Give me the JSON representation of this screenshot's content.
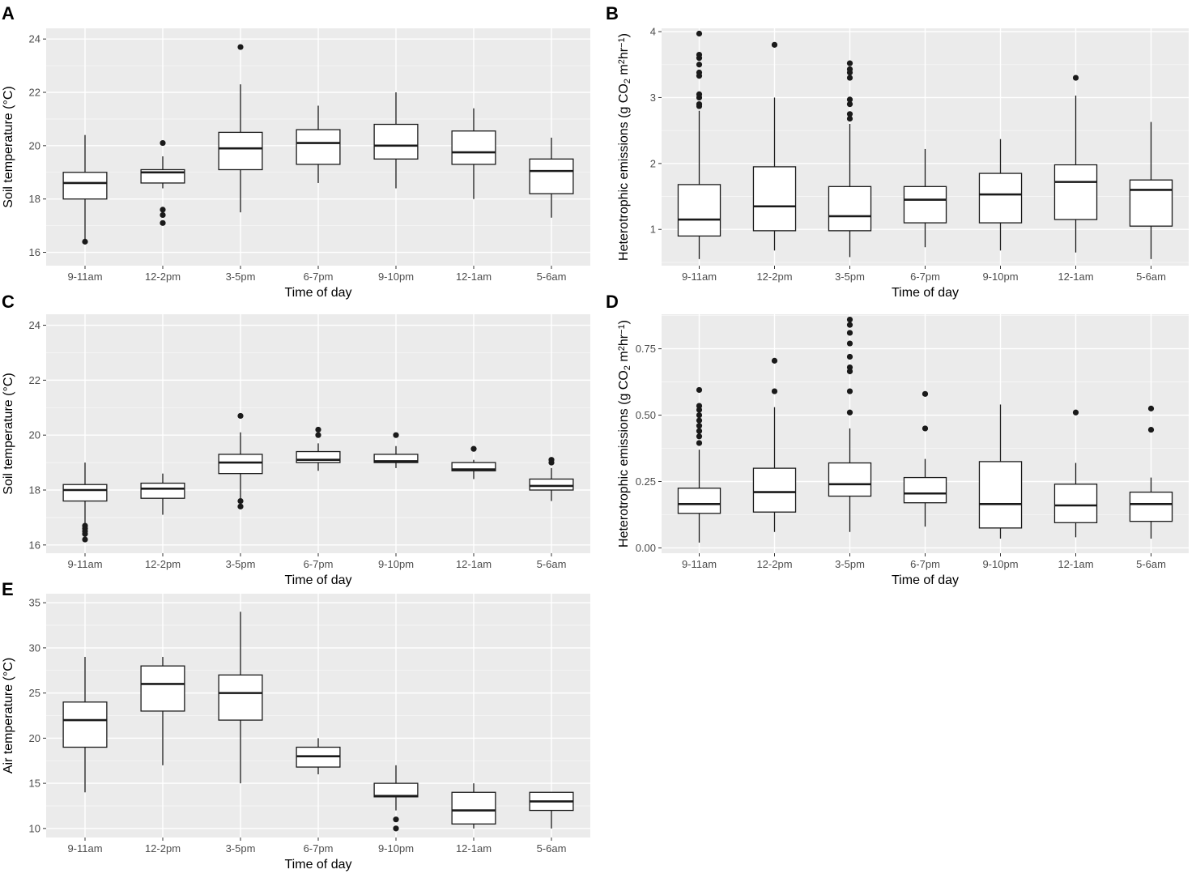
{
  "chart_data": [
    {
      "type": "box",
      "panel": "A",
      "xlabel": "Time of day",
      "ylabel": "Soil temperature (°C)",
      "categories": [
        "9-11am",
        "12-2pm",
        "3-5pm",
        "6-7pm",
        "9-10pm",
        "12-1am",
        "5-6am"
      ],
      "ylim": [
        15.5,
        24.4
      ],
      "yticks": [
        16,
        18,
        20,
        22,
        24
      ],
      "boxes": [
        {
          "whisker_low": 16.4,
          "q1": 18.0,
          "median": 18.6,
          "q3": 19.0,
          "whisker_high": 20.4,
          "outliers": [
            16.4
          ]
        },
        {
          "whisker_low": 18.4,
          "q1": 18.6,
          "median": 19.0,
          "q3": 19.1,
          "whisker_high": 19.6,
          "outliers": [
            20.1,
            17.6,
            17.4,
            17.1
          ]
        },
        {
          "whisker_low": 17.5,
          "q1": 19.1,
          "median": 19.9,
          "q3": 20.5,
          "whisker_high": 22.3,
          "outliers": [
            23.7
          ]
        },
        {
          "whisker_low": 18.6,
          "q1": 19.3,
          "median": 20.1,
          "q3": 20.6,
          "whisker_high": 21.5,
          "outliers": []
        },
        {
          "whisker_low": 18.4,
          "q1": 19.5,
          "median": 20.0,
          "q3": 20.8,
          "whisker_high": 22.0,
          "outliers": []
        },
        {
          "whisker_low": 18.0,
          "q1": 19.3,
          "median": 19.75,
          "q3": 20.55,
          "whisker_high": 21.4,
          "outliers": []
        },
        {
          "whisker_low": 17.3,
          "q1": 18.2,
          "median": 19.05,
          "q3": 19.5,
          "whisker_high": 20.3,
          "outliers": []
        }
      ]
    },
    {
      "type": "box",
      "panel": "B",
      "xlabel": "Time of day",
      "ylabel_parts": [
        "Heterotrophic emissions (g CO",
        "2",
        " m",
        "2",
        "hr",
        "−1",
        ")"
      ],
      "categories": [
        "9-11am",
        "12-2pm",
        "3-5pm",
        "6-7pm",
        "9-10pm",
        "12-1am",
        "5-6am"
      ],
      "ylim": [
        0.45,
        4.05
      ],
      "yticks": [
        1,
        2,
        3,
        4
      ],
      "boxes": [
        {
          "whisker_low": 0.55,
          "q1": 0.9,
          "median": 1.15,
          "q3": 1.68,
          "whisker_high": 2.8,
          "outliers": [
            3.97,
            3.65,
            3.6,
            3.5,
            3.38,
            3.33,
            3.05,
            3.0,
            2.9,
            2.87
          ]
        },
        {
          "whisker_low": 0.68,
          "q1": 0.98,
          "median": 1.35,
          "q3": 1.95,
          "whisker_high": 3.0,
          "outliers": [
            3.8
          ]
        },
        {
          "whisker_low": 0.58,
          "q1": 0.98,
          "median": 1.2,
          "q3": 1.65,
          "whisker_high": 2.6,
          "outliers": [
            3.52,
            3.43,
            3.38,
            3.3,
            2.97,
            2.9,
            2.75,
            2.68
          ]
        },
        {
          "whisker_low": 0.73,
          "q1": 1.1,
          "median": 1.45,
          "q3": 1.65,
          "whisker_high": 2.22,
          "outliers": []
        },
        {
          "whisker_low": 0.68,
          "q1": 1.1,
          "median": 1.53,
          "q3": 1.85,
          "whisker_high": 2.37,
          "outliers": []
        },
        {
          "whisker_low": 0.65,
          "q1": 1.15,
          "median": 1.72,
          "q3": 1.98,
          "whisker_high": 3.03,
          "outliers": [
            3.3
          ]
        },
        {
          "whisker_low": 0.55,
          "q1": 1.05,
          "median": 1.6,
          "q3": 1.75,
          "whisker_high": 2.63,
          "outliers": []
        }
      ]
    },
    {
      "type": "box",
      "panel": "C",
      "xlabel": "Time of day",
      "ylabel": "Soil temperature (°C)",
      "categories": [
        "9-11am",
        "12-2pm",
        "3-5pm",
        "6-7pm",
        "9-10pm",
        "12-1am",
        "5-6am"
      ],
      "ylim": [
        15.7,
        24.4
      ],
      "yticks": [
        16,
        18,
        20,
        22,
        24
      ],
      "boxes": [
        {
          "whisker_low": 16.8,
          "q1": 17.6,
          "median": 18.0,
          "q3": 18.2,
          "whisker_high": 19.0,
          "outliers": [
            16.7,
            16.6,
            16.5,
            16.4,
            16.2
          ]
        },
        {
          "whisker_low": 17.1,
          "q1": 17.7,
          "median": 18.05,
          "q3": 18.25,
          "whisker_high": 18.6,
          "outliers": []
        },
        {
          "whisker_low": 17.7,
          "q1": 18.6,
          "median": 19.0,
          "q3": 19.3,
          "whisker_high": 20.1,
          "outliers": [
            20.7,
            17.6,
            17.4
          ]
        },
        {
          "whisker_low": 18.7,
          "q1": 19.0,
          "median": 19.1,
          "q3": 19.4,
          "whisker_high": 19.7,
          "outliers": [
            20.2,
            20.0
          ]
        },
        {
          "whisker_low": 18.8,
          "q1": 19.0,
          "median": 19.05,
          "q3": 19.3,
          "whisker_high": 19.6,
          "outliers": [
            20.0
          ]
        },
        {
          "whisker_low": 18.4,
          "q1": 18.7,
          "median": 18.75,
          "q3": 19.0,
          "whisker_high": 19.1,
          "outliers": [
            19.5
          ]
        },
        {
          "whisker_low": 17.6,
          "q1": 18.0,
          "median": 18.15,
          "q3": 18.4,
          "whisker_high": 18.8,
          "outliers": [
            19.1,
            19.0
          ]
        }
      ]
    },
    {
      "type": "box",
      "panel": "D",
      "xlabel": "Time of day",
      "ylabel_parts": [
        "Heterotrophic emissions (g CO",
        "2",
        " m",
        "2",
        "hr",
        "−1",
        ")"
      ],
      "categories": [
        "9-11am",
        "12-2pm",
        "3-5pm",
        "6-7pm",
        "9-10pm",
        "12-1am",
        "5-6am"
      ],
      "ylim": [
        -0.02,
        0.88
      ],
      "yticks": [
        0.0,
        0.25,
        0.5,
        0.75
      ],
      "ytick_labels": [
        "0.00",
        "0.25",
        "0.50",
        "0.75"
      ],
      "boxes": [
        {
          "whisker_low": 0.02,
          "q1": 0.13,
          "median": 0.165,
          "q3": 0.225,
          "whisker_high": 0.37,
          "outliers": [
            0.595,
            0.535,
            0.52,
            0.5,
            0.48,
            0.46,
            0.44,
            0.42,
            0.395
          ]
        },
        {
          "whisker_low": 0.06,
          "q1": 0.135,
          "median": 0.21,
          "q3": 0.3,
          "whisker_high": 0.53,
          "outliers": [
            0.705,
            0.59
          ]
        },
        {
          "whisker_low": 0.06,
          "q1": 0.195,
          "median": 0.24,
          "q3": 0.32,
          "whisker_high": 0.45,
          "outliers": [
            0.86,
            0.84,
            0.81,
            0.77,
            0.72,
            0.68,
            0.665,
            0.59,
            0.51
          ]
        },
        {
          "whisker_low": 0.08,
          "q1": 0.17,
          "median": 0.205,
          "q3": 0.265,
          "whisker_high": 0.335,
          "outliers": [
            0.58,
            0.45
          ]
        },
        {
          "whisker_low": 0.035,
          "q1": 0.075,
          "median": 0.165,
          "q3": 0.325,
          "whisker_high": 0.54,
          "outliers": []
        },
        {
          "whisker_low": 0.04,
          "q1": 0.095,
          "median": 0.16,
          "q3": 0.24,
          "whisker_high": 0.32,
          "outliers": [
            0.51
          ]
        },
        {
          "whisker_low": 0.035,
          "q1": 0.1,
          "median": 0.165,
          "q3": 0.21,
          "whisker_high": 0.265,
          "outliers": [
            0.525,
            0.445
          ]
        }
      ]
    },
    {
      "type": "box",
      "panel": "E",
      "xlabel": "Time of day",
      "ylabel": "Air temperature (°C)",
      "categories": [
        "9-11am",
        "12-2pm",
        "3-5pm",
        "6-7pm",
        "9-10pm",
        "12-1am",
        "5-6am"
      ],
      "ylim": [
        9,
        36
      ],
      "yticks": [
        10,
        15,
        20,
        25,
        30,
        35
      ],
      "boxes": [
        {
          "whisker_low": 14,
          "q1": 19,
          "median": 22,
          "q3": 24,
          "whisker_high": 29,
          "outliers": []
        },
        {
          "whisker_low": 17,
          "q1": 23,
          "median": 26,
          "q3": 28,
          "whisker_high": 29,
          "outliers": []
        },
        {
          "whisker_low": 15,
          "q1": 22,
          "median": 25,
          "q3": 27,
          "whisker_high": 34,
          "outliers": []
        },
        {
          "whisker_low": 16,
          "q1": 16.8,
          "median": 18,
          "q3": 19,
          "whisker_high": 20,
          "outliers": []
        },
        {
          "whisker_low": 12,
          "q1": 13.5,
          "median": 13.6,
          "q3": 15,
          "whisker_high": 17,
          "outliers": [
            11,
            10
          ]
        },
        {
          "whisker_low": 10,
          "q1": 10.5,
          "median": 12,
          "q3": 14,
          "whisker_high": 15,
          "outliers": []
        },
        {
          "whisker_low": 10,
          "q1": 12,
          "median": 13,
          "q3": 14,
          "whisker_high": 14,
          "outliers": []
        }
      ]
    }
  ]
}
